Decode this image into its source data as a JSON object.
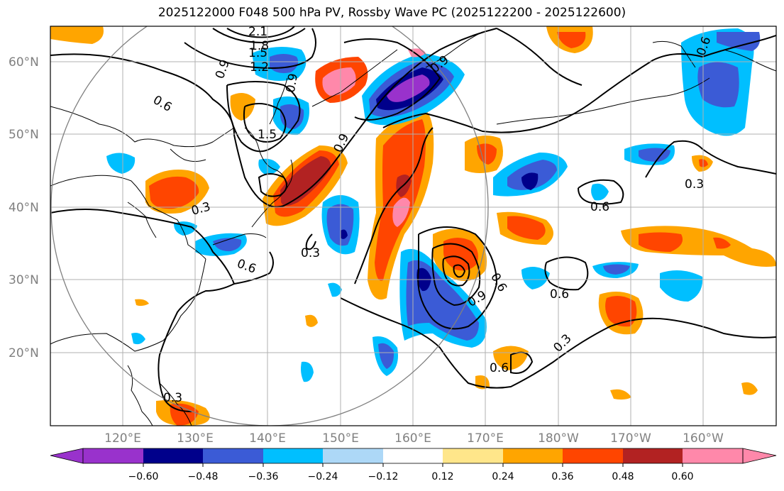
{
  "title": "2025122000 F048 500 hPa PV, Rossby Wave PC (2025122200 - 2025122600)",
  "lat_labels": [
    "60°N",
    "50°N",
    "40°N",
    "30°N",
    "20°N"
  ],
  "lon_labels": [
    "120°E",
    "130°E",
    "140°E",
    "150°E",
    "160°E",
    "170°E",
    "180°W",
    "170°W",
    "160°W"
  ],
  "colorbar": {
    "ticks": [
      "−0.60",
      "−0.48",
      "−0.36",
      "−0.24",
      "−0.12",
      "0.12",
      "0.24",
      "0.36",
      "0.48",
      "0.60"
    ],
    "colors": [
      "#9932cc",
      "#00008b",
      "#3b5bd6",
      "#00bfff",
      "#add8f7",
      "#ffffff",
      "#ffe68a",
      "#ffa500",
      "#ff4500",
      "#b22222",
      "#ff88aa"
    ]
  },
  "contour_labels": [
    "2.1",
    "1.8",
    "1.5",
    "1.2",
    "0.9",
    "0.9",
    "0.6",
    "1.5",
    "0.9",
    "0.3",
    "0.3",
    "0.6",
    "0.9",
    "0.6",
    "0.9",
    "0.6",
    "0.3",
    "0.6",
    "0.3",
    "0.3",
    "0.6",
    "0.6"
  ],
  "colors": {
    "coast": "#000000",
    "grid": "#b0b0b0",
    "contour": "#000000"
  }
}
